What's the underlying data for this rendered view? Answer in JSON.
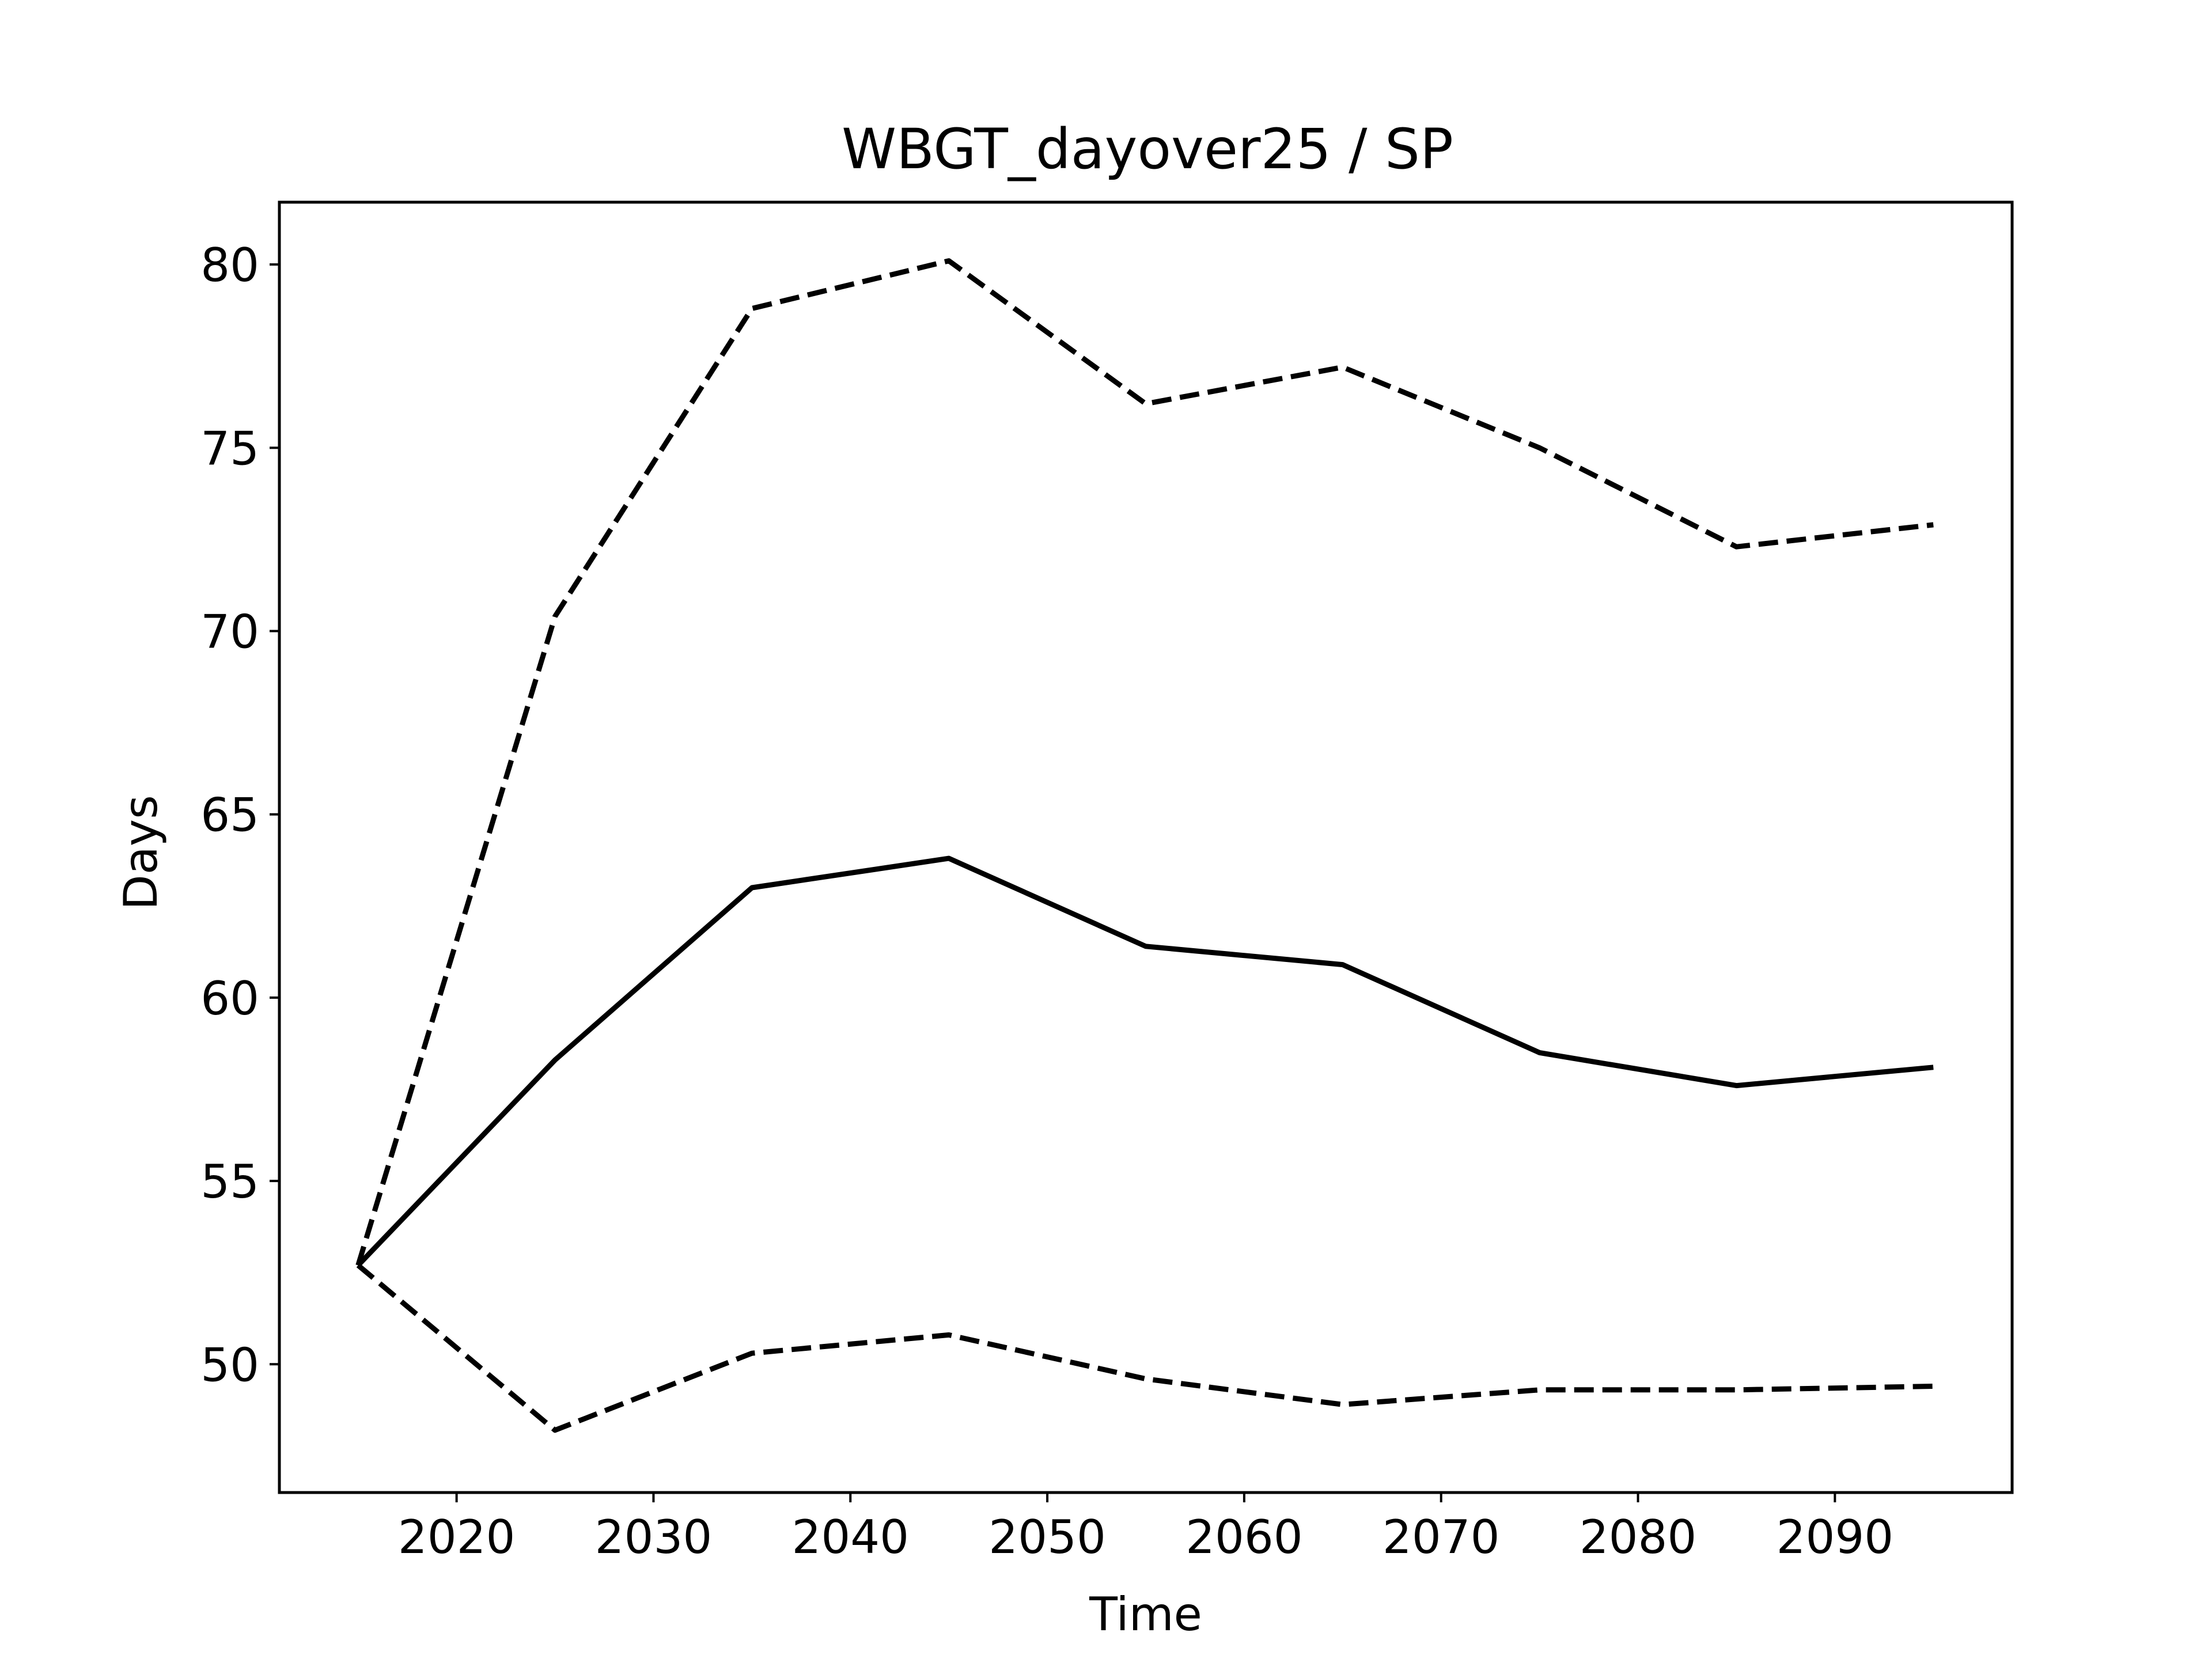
{
  "chart_data": {
    "type": "line",
    "title": "WBGT_dayover25 / SP",
    "xlabel": "Time",
    "ylabel": "Days",
    "xlim": [
      2011,
      2099
    ],
    "ylim": [
      46.5,
      81.7
    ],
    "xticks": [
      2020,
      2030,
      2040,
      2050,
      2060,
      2070,
      2080,
      2090
    ],
    "yticks": [
      50,
      55,
      60,
      65,
      70,
      75,
      80
    ],
    "grid": false,
    "legend": "none",
    "line_color": "#000000",
    "x": [
      2015,
      2025,
      2035,
      2045,
      2055,
      2065,
      2075,
      2085,
      2095
    ],
    "series": [
      {
        "style": "dashed",
        "values": [
          52.7,
          70.4,
          78.8,
          80.1,
          76.2,
          77.2,
          75.0,
          72.3,
          72.9
        ]
      },
      {
        "style": "solid",
        "values": [
          52.7,
          58.3,
          63.0,
          63.8,
          61.4,
          60.9,
          58.5,
          57.6,
          58.1
        ]
      },
      {
        "style": "dashed",
        "values": [
          52.7,
          48.2,
          50.3,
          50.8,
          49.6,
          48.9,
          49.3,
          49.3,
          49.4
        ]
      }
    ]
  }
}
